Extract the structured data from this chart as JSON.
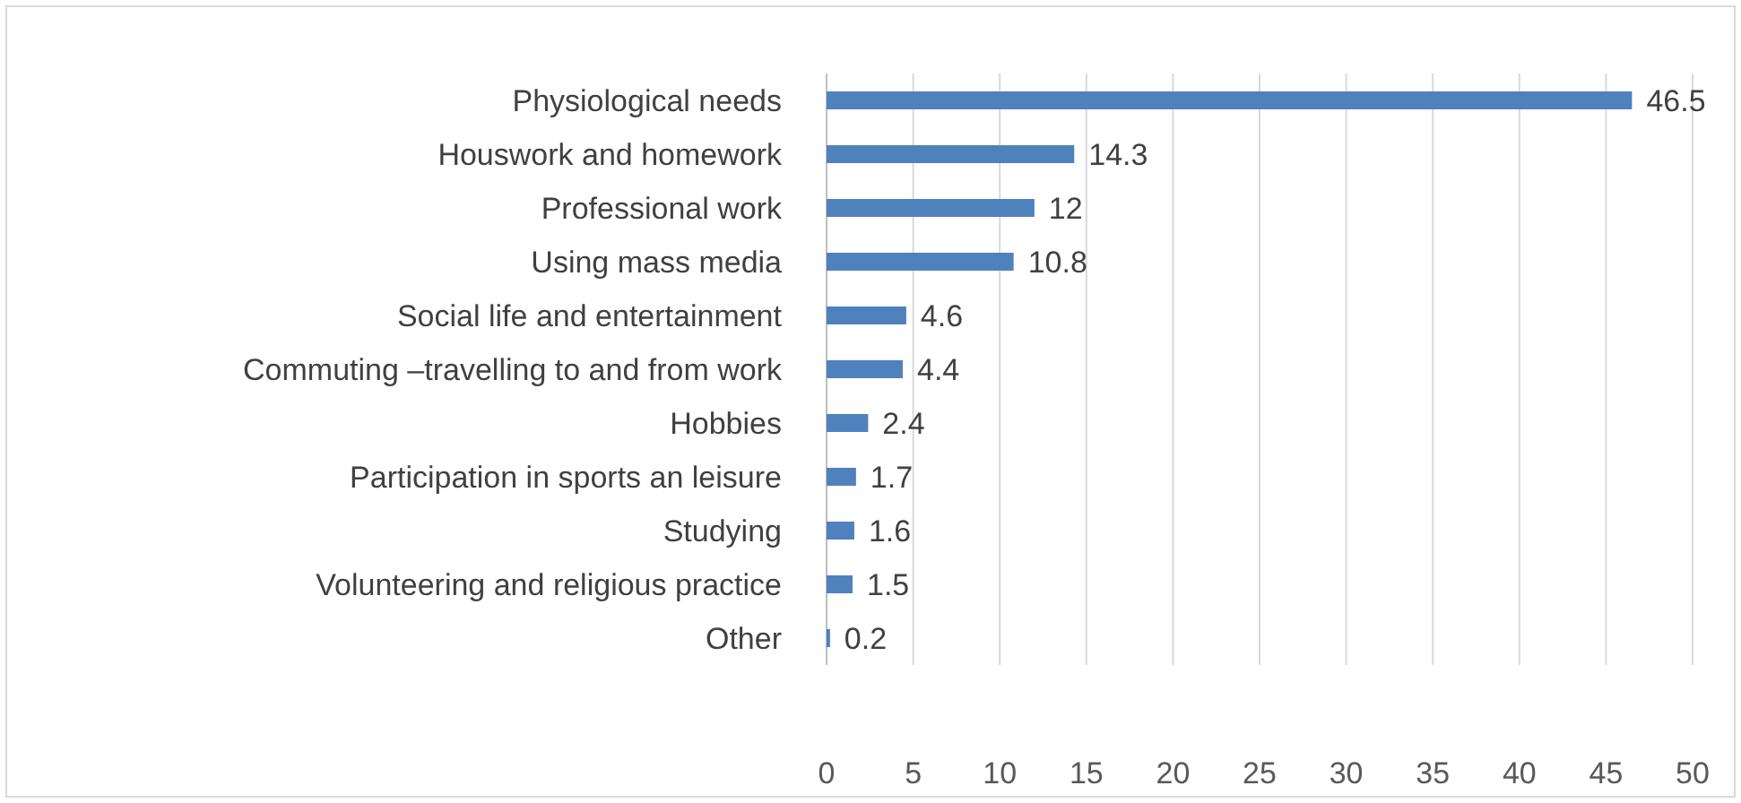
{
  "chart_data": {
    "type": "bar",
    "orientation": "horizontal",
    "categories": [
      "Physiological needs",
      "Houswork and homework",
      "Professional work",
      "Using mass media",
      "Social life and entertainment",
      "Commuting –travelling to and from work",
      "Hobbies",
      "Participation in sports an leisure",
      "Studying",
      "Volunteering and religious practice",
      "Other"
    ],
    "values": [
      46.5,
      14.3,
      12,
      10.8,
      4.6,
      4.4,
      2.4,
      1.7,
      1.6,
      1.5,
      0.2
    ],
    "color": "#4f81bd",
    "xlim": [
      0,
      50
    ],
    "xticks": [
      0,
      5,
      10,
      15,
      20,
      25,
      30,
      35,
      40,
      45,
      50
    ],
    "grid": "x",
    "data_labels": true
  }
}
